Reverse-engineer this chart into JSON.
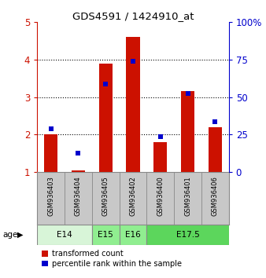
{
  "title": "GDS4591 / 1424910_at",
  "samples": [
    "GSM936403",
    "GSM936404",
    "GSM936405",
    "GSM936402",
    "GSM936400",
    "GSM936401",
    "GSM936406"
  ],
  "red_values": [
    2.0,
    1.05,
    3.9,
    4.6,
    1.8,
    3.15,
    2.2
  ],
  "blue_values": [
    2.15,
    1.5,
    3.35,
    3.95,
    1.95,
    3.1,
    2.35
  ],
  "age_groups": [
    {
      "label": "E14",
      "start": 0,
      "end": 2,
      "color": "#d8f5d8"
    },
    {
      "label": "E15",
      "start": 2,
      "end": 3,
      "color": "#90ee90"
    },
    {
      "label": "E16",
      "start": 3,
      "end": 4,
      "color": "#90ee90"
    },
    {
      "label": "E17.5",
      "start": 4,
      "end": 7,
      "color": "#5cd65c"
    }
  ],
  "ylim_left": [
    1,
    5
  ],
  "ylim_right": [
    0,
    100
  ],
  "yticks_left": [
    1,
    2,
    3,
    4,
    5
  ],
  "yticks_right": [
    0,
    25,
    50,
    75,
    100
  ],
  "ytick_labels_left": [
    "1",
    "2",
    "3",
    "4",
    "5"
  ],
  "ytick_labels_right": [
    "0",
    "25",
    "50",
    "75",
    "100%"
  ],
  "red_color": "#cc1100",
  "blue_color": "#0000cc",
  "bar_width": 0.5,
  "bg_plot": "#ffffff",
  "bg_sample": "#c8c8c8",
  "legend_red": "transformed count",
  "legend_blue": "percentile rank within the sample"
}
